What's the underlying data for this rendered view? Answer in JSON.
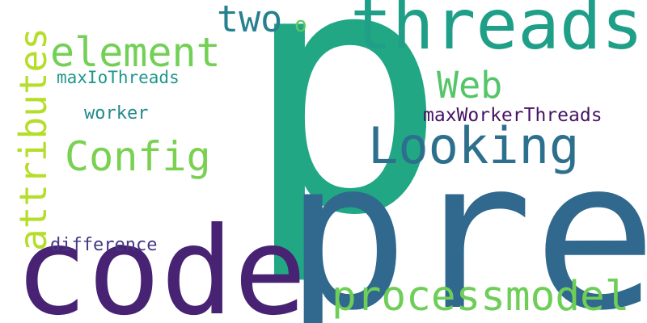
{
  "words": [
    {
      "text": "p",
      "color": "#22a784"
    },
    {
      "text": "pre",
      "color": "#30688e"
    },
    {
      "text": "code",
      "color": "#482374"
    },
    {
      "text": "threads",
      "color": "#1f9f88"
    },
    {
      "text": "Looking",
      "color": "#2d708e"
    },
    {
      "text": "processmodel",
      "color": "#6ece58"
    },
    {
      "text": "Config",
      "color": "#7ad151"
    },
    {
      "text": "element",
      "color": "#73d056"
    },
    {
      "text": "Web",
      "color": "#54c568"
    },
    {
      "text": "two",
      "color": "#26818e"
    },
    {
      "text": "maxIoThreads",
      "color": "#1f978b"
    },
    {
      "text": "maxWorkerThreads",
      "color": "#471365"
    },
    {
      "text": "worker",
      "color": "#238a8d"
    },
    {
      "text": "difference",
      "color": "#443983"
    },
    {
      "text": "o",
      "color": "#5ec962"
    },
    {
      "text": "attributes",
      "color": "#b5de2b"
    }
  ]
}
